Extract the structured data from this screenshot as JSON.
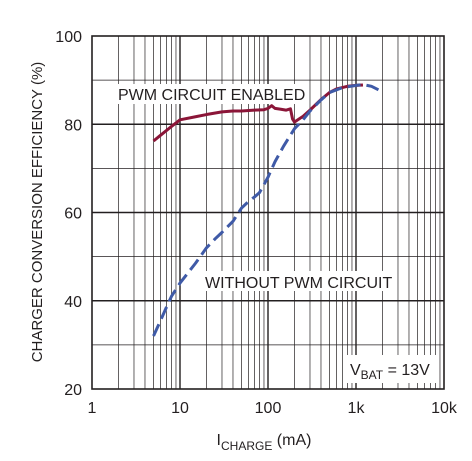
{
  "chart_data": {
    "type": "line",
    "xscale": "log",
    "xlim": [
      1,
      10000
    ],
    "ylim": [
      20,
      100
    ],
    "xticks": [
      1,
      10,
      100,
      1000,
      10000
    ],
    "xtick_labels": [
      "1",
      "10",
      "100",
      "1k",
      "10k"
    ],
    "yticks": [
      20,
      40,
      60,
      80,
      100
    ],
    "ytick_labels": [
      "20",
      "40",
      "60",
      "80",
      "100"
    ],
    "grid": true,
    "ylabel": "CHARGER CONVERSION EFFICIENCY (%)",
    "xlabel": {
      "main": "I",
      "sub": "CHARGE",
      "unit": " (mA)"
    },
    "annotation": {
      "main": "V",
      "sub": "BAT",
      "rest": " = 13V"
    },
    "series": [
      {
        "name": "PWM CIRCUIT ENABLED",
        "color": "#8b1538",
        "style": "solid",
        "x": [
          5,
          6,
          8,
          10,
          15,
          20,
          30,
          40,
          50,
          70,
          90,
          100,
          110,
          120,
          140,
          160,
          180,
          190,
          200,
          250,
          300,
          400,
          500,
          600,
          800,
          1000,
          1200
        ],
        "y": [
          76.2,
          77.5,
          79.5,
          81,
          81.7,
          82.2,
          82.8,
          83,
          83,
          83.2,
          83.3,
          83.6,
          84.2,
          83.6,
          83.4,
          83.2,
          83.5,
          81.2,
          80.5,
          81.8,
          83.2,
          85.6,
          87.2,
          88,
          88.6,
          88.8,
          88.9
        ]
      },
      {
        "name": "WITHOUT PWM CIRCUIT",
        "color": "#3f5aa7",
        "style": "dashed",
        "x": [
          5,
          6,
          7,
          8,
          10,
          15,
          20,
          25,
          30,
          40,
          50,
          60,
          70,
          80,
          100,
          120,
          150,
          200,
          250,
          300,
          400,
          500,
          700,
          1000,
          1200,
          1500,
          1800
        ],
        "y": [
          32,
          35.5,
          38.5,
          41,
          44,
          48.5,
          52,
          54,
          55.5,
          58,
          61,
          62.5,
          63.5,
          64.5,
          68,
          71.5,
          75,
          79,
          81,
          83,
          85.5,
          87.2,
          88.3,
          88.8,
          89,
          88.6,
          87.8
        ]
      }
    ]
  }
}
